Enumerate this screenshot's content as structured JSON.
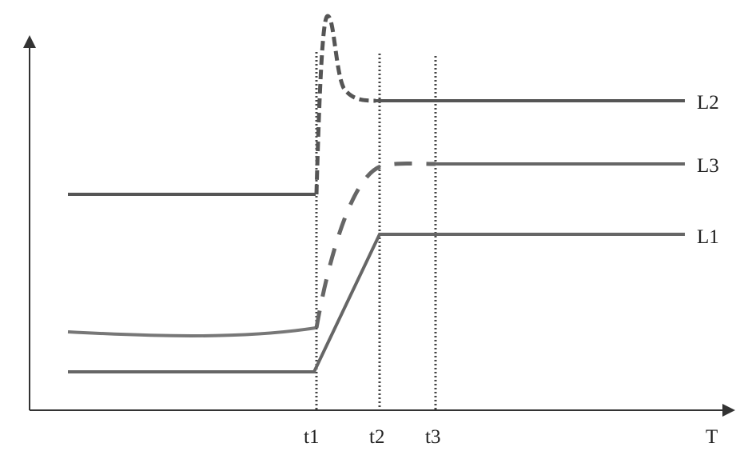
{
  "axes": {
    "x_label": "T"
  },
  "time_markers": [
    {
      "label": "t1"
    },
    {
      "label": "t2"
    },
    {
      "label": "t3"
    }
  ],
  "curves": [
    {
      "label": "L1"
    },
    {
      "label": "L2"
    },
    {
      "label": "L3"
    }
  ],
  "colors": {
    "line": "#555555",
    "axis": "#333333"
  }
}
